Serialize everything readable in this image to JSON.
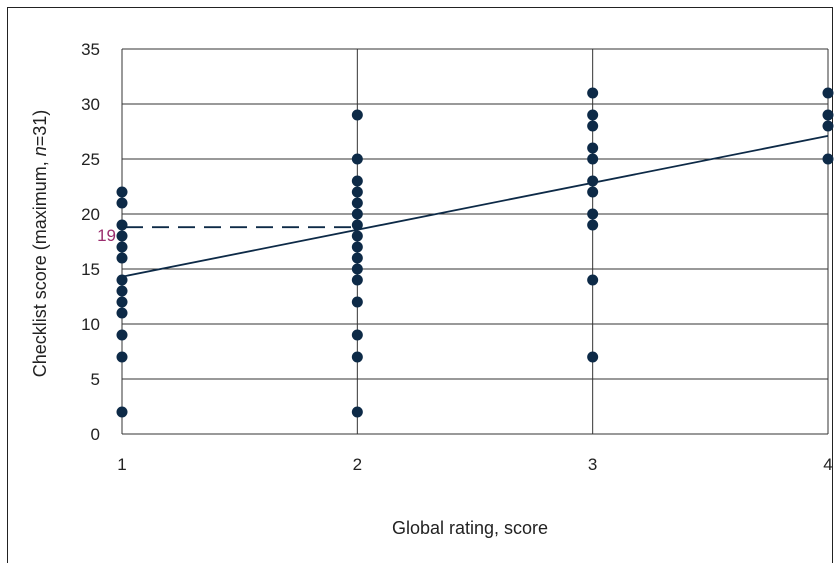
{
  "chart_data": {
    "type": "scatter",
    "title": "",
    "xlabel": "Global rating, score",
    "ylabel_parts": [
      "Checklist score (maximum, ",
      "n",
      "=31)"
    ],
    "xlim": [
      1,
      4
    ],
    "ylim": [
      0,
      35
    ],
    "x_ticks": [
      1,
      2,
      3,
      4
    ],
    "y_ticks": [
      0,
      5,
      10,
      15,
      20,
      25,
      30,
      35
    ],
    "grid": true,
    "points": [
      {
        "x": 1,
        "y": 2
      },
      {
        "x": 1,
        "y": 7
      },
      {
        "x": 1,
        "y": 9
      },
      {
        "x": 1,
        "y": 11
      },
      {
        "x": 1,
        "y": 12
      },
      {
        "x": 1,
        "y": 13
      },
      {
        "x": 1,
        "y": 14
      },
      {
        "x": 1,
        "y": 16
      },
      {
        "x": 1,
        "y": 17
      },
      {
        "x": 1,
        "y": 18
      },
      {
        "x": 1,
        "y": 19
      },
      {
        "x": 1,
        "y": 21
      },
      {
        "x": 1,
        "y": 22
      },
      {
        "x": 2,
        "y": 2
      },
      {
        "x": 2,
        "y": 7
      },
      {
        "x": 2,
        "y": 9
      },
      {
        "x": 2,
        "y": 12
      },
      {
        "x": 2,
        "y": 14
      },
      {
        "x": 2,
        "y": 15
      },
      {
        "x": 2,
        "y": 16
      },
      {
        "x": 2,
        "y": 17
      },
      {
        "x": 2,
        "y": 18
      },
      {
        "x": 2,
        "y": 19
      },
      {
        "x": 2,
        "y": 20
      },
      {
        "x": 2,
        "y": 21
      },
      {
        "x": 2,
        "y": 22
      },
      {
        "x": 2,
        "y": 23
      },
      {
        "x": 2,
        "y": 25
      },
      {
        "x": 2,
        "y": 29
      },
      {
        "x": 3,
        "y": 7
      },
      {
        "x": 3,
        "y": 14
      },
      {
        "x": 3,
        "y": 19
      },
      {
        "x": 3,
        "y": 20
      },
      {
        "x": 3,
        "y": 22
      },
      {
        "x": 3,
        "y": 23
      },
      {
        "x": 3,
        "y": 25
      },
      {
        "x": 3,
        "y": 26
      },
      {
        "x": 3,
        "y": 28
      },
      {
        "x": 3,
        "y": 29
      },
      {
        "x": 3,
        "y": 31
      },
      {
        "x": 4,
        "y": 25
      },
      {
        "x": 4,
        "y": 28
      },
      {
        "x": 4,
        "y": 29
      },
      {
        "x": 4,
        "y": 31
      }
    ],
    "regression_line": {
      "x": [
        1,
        4
      ],
      "y": [
        14.3,
        27.1
      ]
    },
    "reference_line": {
      "y": 18.8,
      "x_from": 1,
      "x_to": 2,
      "label": "19",
      "style": "dashed"
    },
    "colors": {
      "points": "#0d2a47",
      "line": "#0d2a47",
      "grid": "#333333",
      "reference_label": "#9b2d6e"
    }
  }
}
